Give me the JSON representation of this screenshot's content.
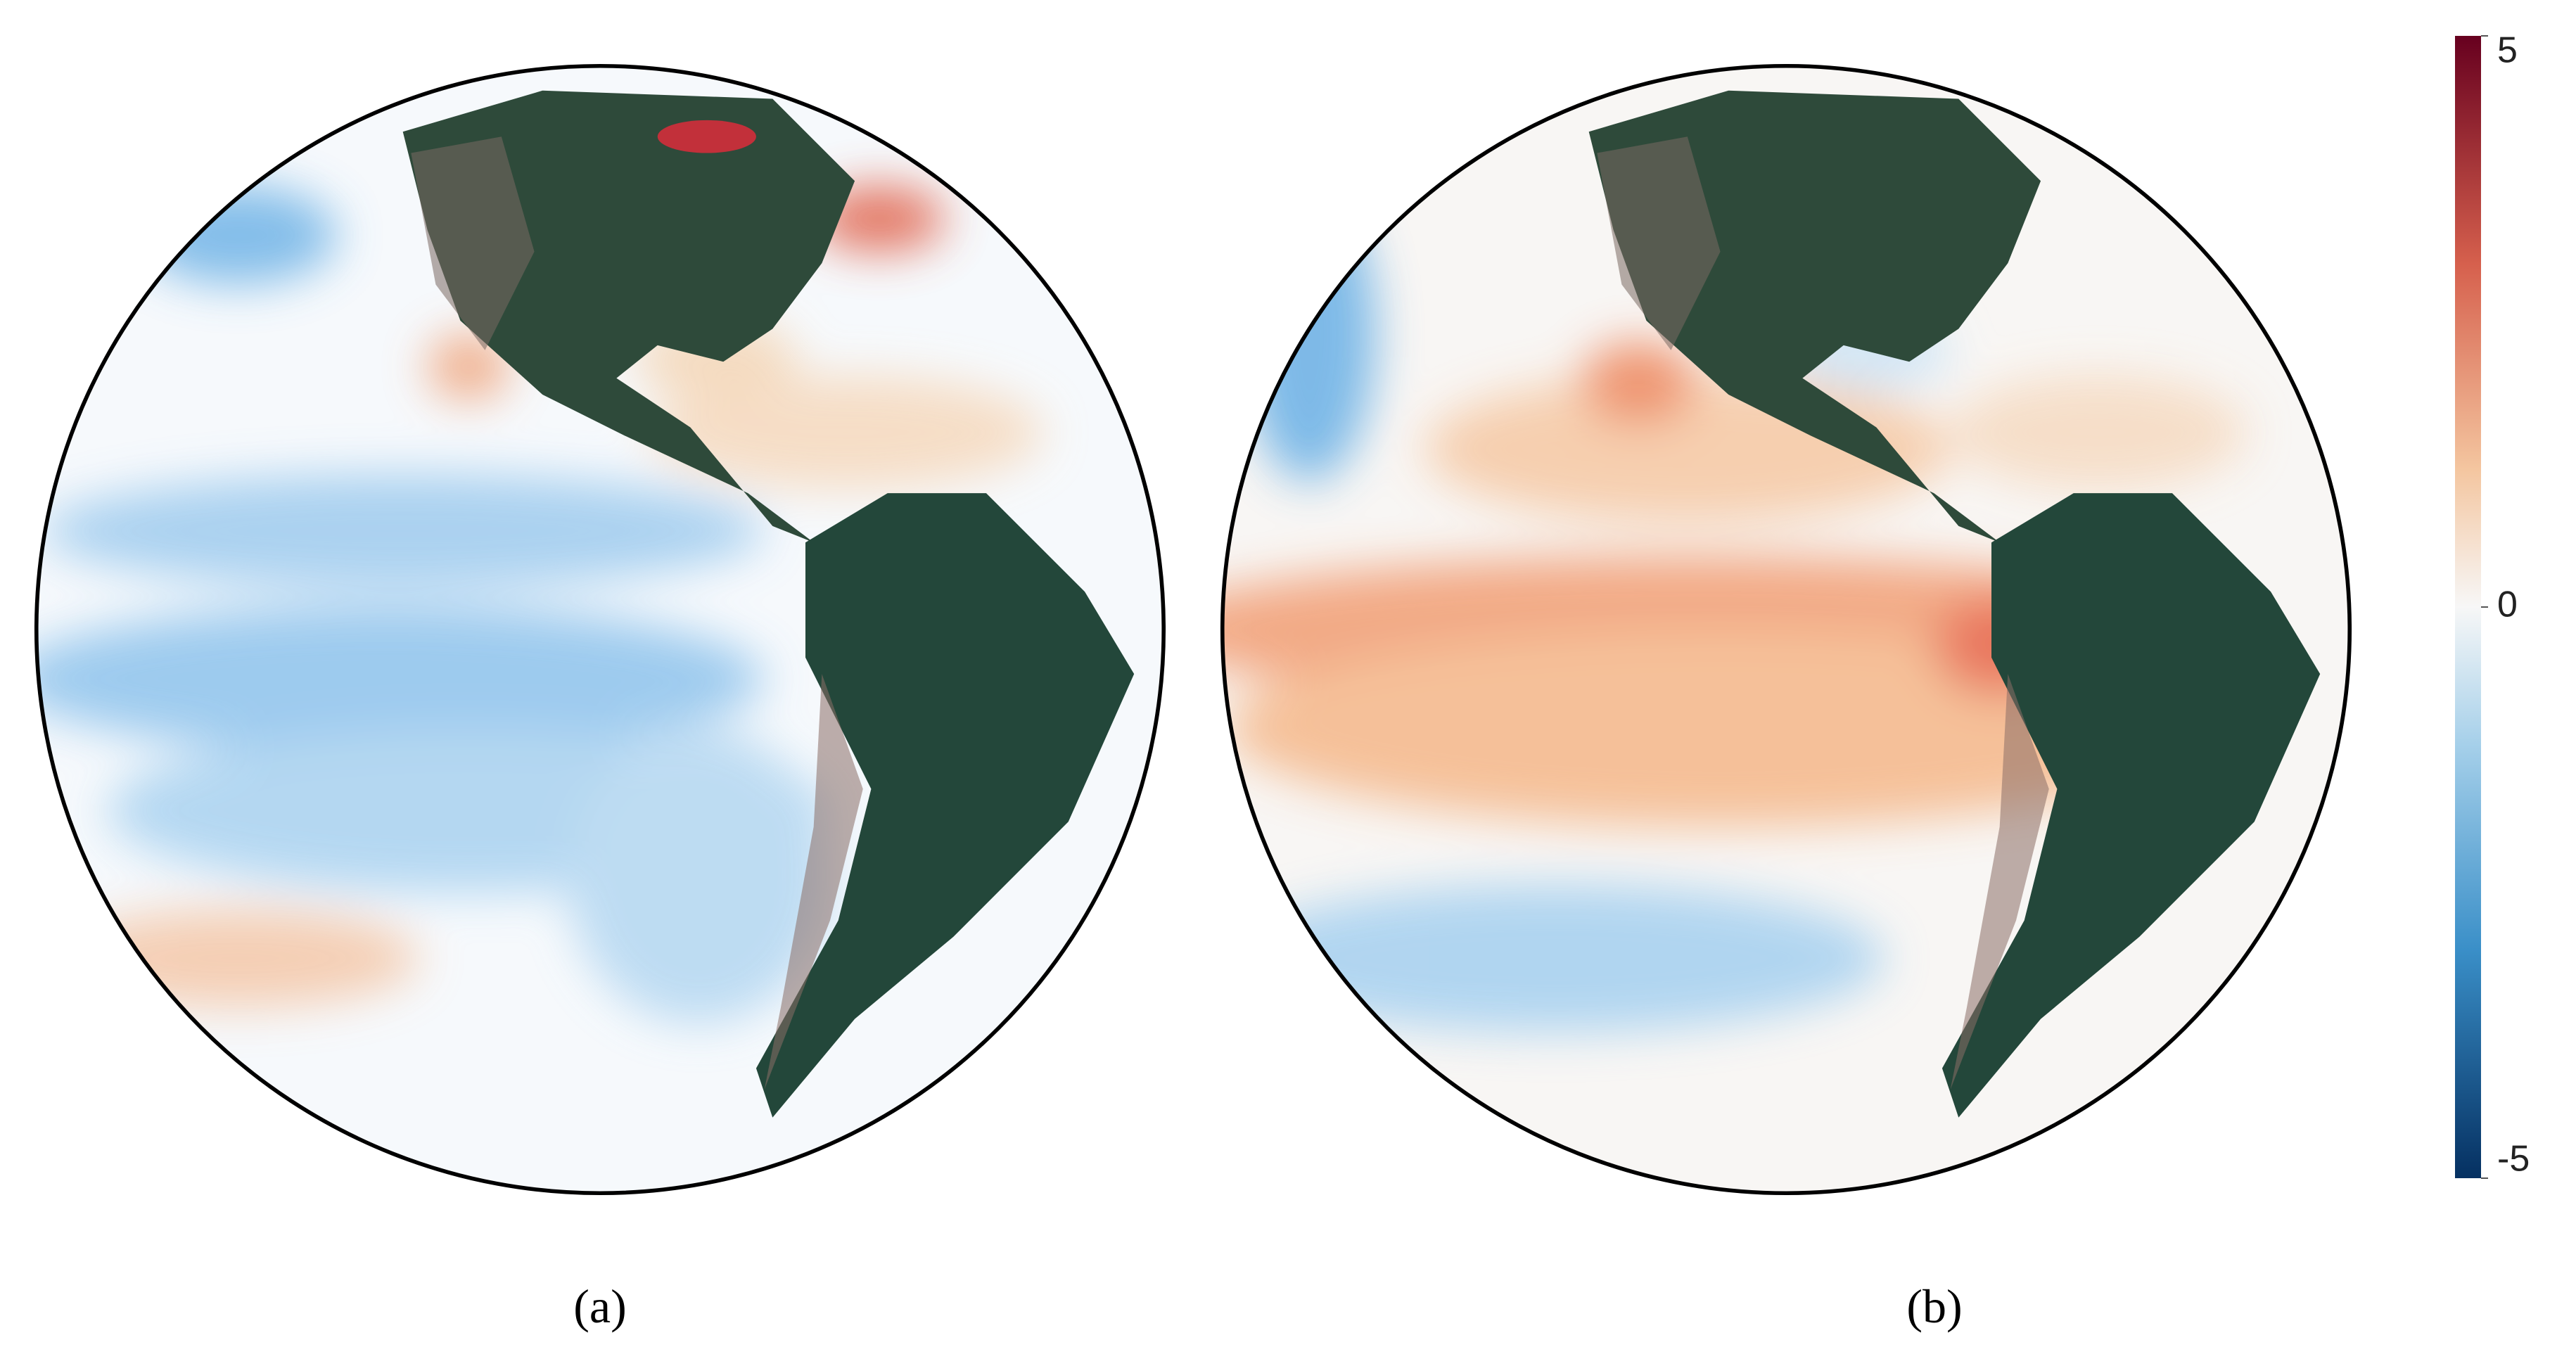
{
  "panels": [
    {
      "label": "(a)"
    },
    {
      "label": "(b)"
    }
  ],
  "colorbar": {
    "range": [
      -5,
      5
    ],
    "ticks": [
      5,
      0,
      -5
    ]
  }
}
